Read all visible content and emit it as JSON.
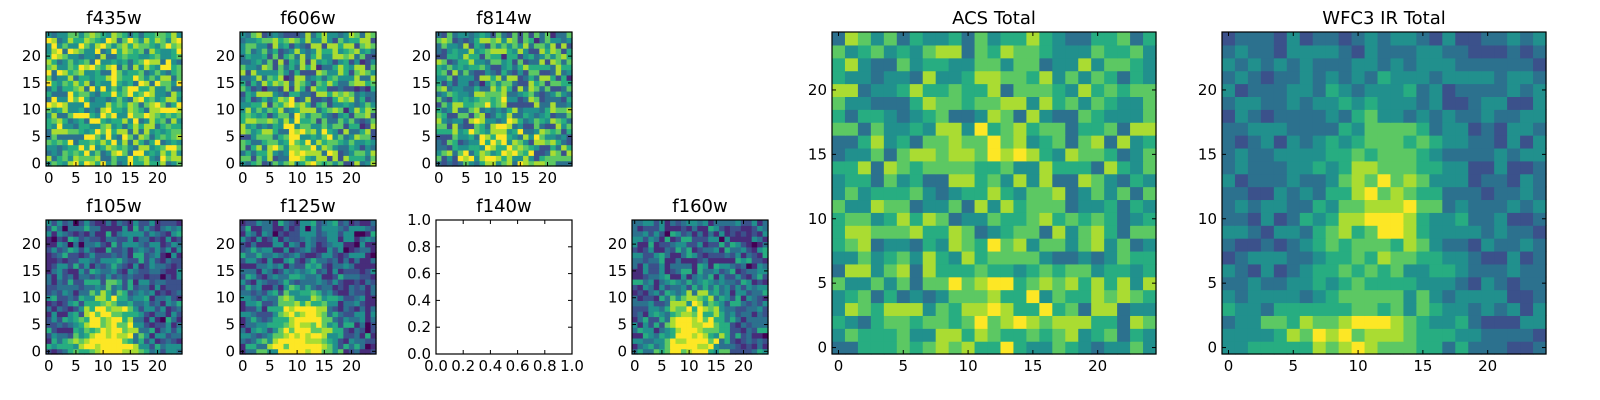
{
  "figure": {
    "type": "multi-panel image grid"
  },
  "colors": {
    "viridis": [
      "#440154",
      "#472c7a",
      "#3b518b",
      "#2c718e",
      "#21908d",
      "#27ad81",
      "#5cc863",
      "#aadc32",
      "#fde725"
    ],
    "axes": "#000000",
    "background": "#ffffff"
  },
  "chart_data": [
    {
      "id": "f435w",
      "type": "heatmap",
      "title": "f435w",
      "grid_size": 25,
      "empty": false,
      "field": "noise_flat",
      "xticks": [
        "0",
        "5",
        "10",
        "15",
        "20"
      ],
      "yticks": [
        "0",
        "5",
        "10",
        "15",
        "20"
      ]
    },
    {
      "id": "f606w",
      "type": "heatmap",
      "title": "f606w",
      "grid_size": 25,
      "empty": false,
      "field": "noise_weak_peak",
      "xticks": [
        "0",
        "5",
        "10",
        "15",
        "20"
      ],
      "yticks": [
        "0",
        "5",
        "10",
        "15",
        "20"
      ]
    },
    {
      "id": "f814w",
      "type": "heatmap",
      "title": "f814w",
      "grid_size": 25,
      "empty": false,
      "field": "noise_weak_peak",
      "xticks": [
        "0",
        "5",
        "10",
        "15",
        "20"
      ],
      "yticks": [
        "0",
        "5",
        "10",
        "15",
        "20"
      ]
    },
    {
      "id": "f105w",
      "type": "heatmap",
      "title": "f105w",
      "grid_size": 25,
      "empty": false,
      "field": "source_bottom_center",
      "xticks": [
        "0",
        "5",
        "10",
        "15",
        "20"
      ],
      "yticks": [
        "0",
        "5",
        "10",
        "15",
        "20"
      ]
    },
    {
      "id": "f125w",
      "type": "heatmap",
      "title": "f125w",
      "grid_size": 25,
      "empty": false,
      "field": "source_bottom_center",
      "xticks": [
        "0",
        "5",
        "10",
        "15",
        "20"
      ],
      "yticks": [
        "0",
        "5",
        "10",
        "15",
        "20"
      ]
    },
    {
      "id": "f140w",
      "type": "empty_axes",
      "title": "f140w",
      "empty": true,
      "xlim": [
        0.0,
        1.0
      ],
      "ylim": [
        0.0,
        1.0
      ],
      "xticks": [
        "0.0",
        "0.2",
        "0.4",
        "0.6",
        "0.8",
        "1.0"
      ],
      "yticks": [
        "0.0",
        "0.2",
        "0.4",
        "0.6",
        "0.8",
        "1.0"
      ]
    },
    {
      "id": "f160w",
      "type": "heatmap",
      "title": "f160w",
      "grid_size": 25,
      "empty": false,
      "field": "source_bottom_center",
      "xticks": [
        "0",
        "5",
        "10",
        "15",
        "20"
      ],
      "yticks": [
        "0",
        "5",
        "10",
        "15",
        "20"
      ]
    },
    {
      "id": "acs_total",
      "type": "heatmap",
      "title": "ACS Total",
      "grid_size": 25,
      "empty": false,
      "field": "acs_total",
      "xticks": [
        "0",
        "5",
        "10",
        "15",
        "20"
      ],
      "yticks": [
        "0",
        "5",
        "10",
        "15",
        "20"
      ]
    },
    {
      "id": "wfc3_ir_total",
      "type": "heatmap",
      "title": "WFC3 IR Total",
      "grid_size": 25,
      "empty": false,
      "field": "ir_total",
      "xticks": [
        "0",
        "5",
        "10",
        "15",
        "20"
      ],
      "yticks": [
        "0",
        "5",
        "10",
        "15",
        "20"
      ]
    }
  ]
}
